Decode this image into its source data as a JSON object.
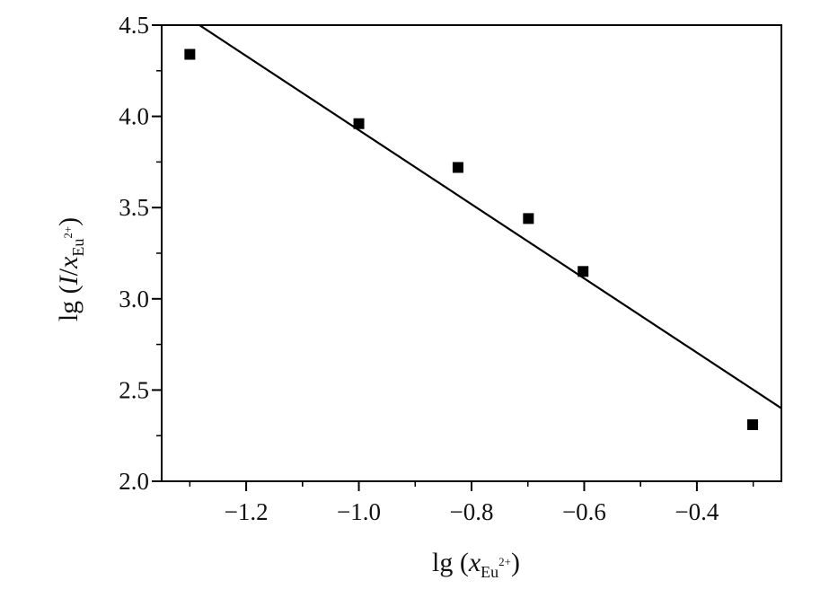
{
  "chart_data": {
    "type": "scatter",
    "title": "",
    "xlabel": {
      "prefix": "lg (",
      "var": "x",
      "sub": "Eu",
      "sup": "2+",
      "suffix": ")"
    },
    "ylabel": {
      "prefix": "lg (",
      "var": "I",
      "mid": "/",
      "var2": "x",
      "sub": "Eu",
      "sup": "2+",
      "suffix": ")"
    },
    "xlim": [
      -1.35,
      -0.25
    ],
    "ylim": [
      2.0,
      4.5
    ],
    "x_ticks": [
      -1.2,
      -1.0,
      -0.8,
      -0.6,
      -0.4
    ],
    "x_tick_labels": [
      "−1.2",
      "−1.0",
      "−0.8",
      "−0.6",
      "−0.4"
    ],
    "y_ticks": [
      2.0,
      2.5,
      3.0,
      3.5,
      4.0,
      4.5
    ],
    "y_tick_labels": [
      "2.0",
      "2.5",
      "3.0",
      "3.5",
      "4.0",
      "4.5"
    ],
    "grid": false,
    "series": [
      {
        "marker": "square",
        "color": "#000000",
        "points": [
          {
            "x": -1.3,
            "y": 4.34
          },
          {
            "x": -1.0,
            "y": 3.96
          },
          {
            "x": -0.824,
            "y": 3.72
          },
          {
            "x": -0.699,
            "y": 3.44
          },
          {
            "x": -0.602,
            "y": 3.15
          },
          {
            "x": -0.301,
            "y": 2.31
          }
        ]
      }
    ],
    "fit_line": {
      "color": "#000000",
      "x": [
        -1.283,
        -0.25
      ],
      "y": [
        4.5,
        2.4
      ]
    }
  }
}
